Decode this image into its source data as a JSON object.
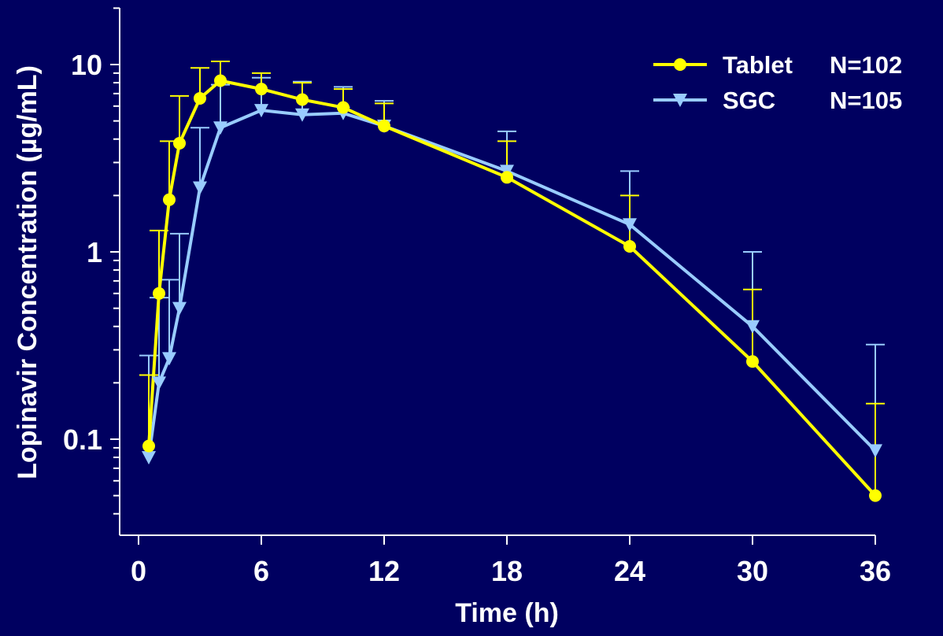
{
  "chart_data": {
    "type": "line",
    "title": "",
    "xlabel": "Time (h)",
    "ylabel": "Lopinavir Concentration (µg/mL)",
    "y_scale": "log",
    "xlim": [
      0,
      36
    ],
    "ylim": [
      0.04,
      20
    ],
    "x_ticks": [
      0,
      6,
      12,
      18,
      24,
      30,
      36
    ],
    "x_tick_labels": [
      "0",
      "6",
      "12",
      "18",
      "24",
      "30",
      "36"
    ],
    "y_ticks": [
      0.1,
      1,
      10
    ],
    "y_tick_labels": [
      "0.1",
      "1",
      "10"
    ],
    "grid": false,
    "legend_position": "top-right",
    "legend": [
      {
        "label": "Tablet",
        "n": "N=102",
        "color": "#ffff00",
        "marker": "circle"
      },
      {
        "label": "SGC",
        "n": "N=105",
        "color": "#99ccff",
        "marker": "triangle-down"
      }
    ],
    "series": [
      {
        "name": "Tablet",
        "color": "#ffff00",
        "marker": "circle",
        "x": [
          0.5,
          1,
          1.5,
          2,
          3,
          4,
          6,
          8,
          10,
          12,
          18,
          24,
          30,
          36
        ],
        "y": [
          0.092,
          0.6,
          1.9,
          3.8,
          6.6,
          8.2,
          7.4,
          6.5,
          5.9,
          4.7,
          2.5,
          1.07,
          0.26,
          0.05
        ],
        "error_upper": [
          0.22,
          1.3,
          3.9,
          6.8,
          9.6,
          10.4,
          9.0,
          8.0,
          7.4,
          6.2,
          3.9,
          2.0,
          0.63,
          0.155
        ]
      },
      {
        "name": "SGC",
        "color": "#99ccff",
        "marker": "triangle-down",
        "x": [
          0.5,
          1,
          1.5,
          2,
          3,
          4,
          6,
          8,
          10,
          12,
          18,
          24,
          30,
          36
        ],
        "y": [
          0.08,
          0.2,
          0.27,
          0.5,
          2.2,
          4.6,
          5.7,
          5.4,
          5.5,
          4.7,
          2.7,
          1.4,
          0.4,
          0.087
        ],
        "error_upper": [
          0.28,
          0.57,
          0.71,
          1.25,
          4.6,
          7.8,
          8.5,
          8.1,
          7.6,
          6.4,
          4.4,
          2.7,
          1.0,
          0.32
        ]
      }
    ]
  }
}
